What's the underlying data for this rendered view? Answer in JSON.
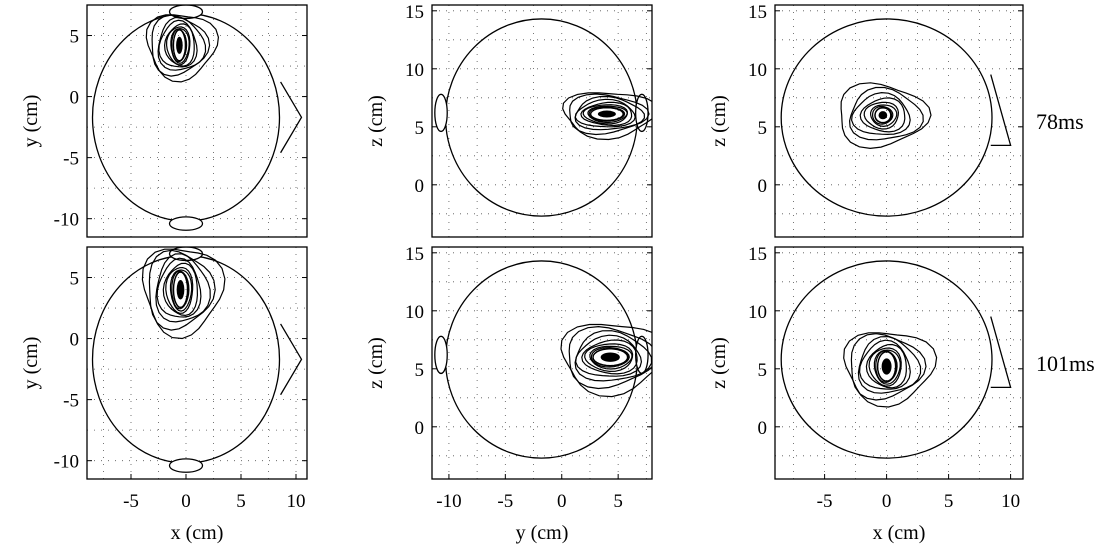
{
  "chart_data": [
    {
      "type": "contour",
      "view": "top",
      "row_label": "78ms",
      "xlabel": "",
      "ylabel": "y (cm)",
      "xlim": [
        -9,
        11
      ],
      "ylim": [
        -11.5,
        7.5
      ],
      "xticks": [],
      "yticks": [
        "5",
        "0",
        "-5",
        "-10"
      ],
      "grid": true,
      "head": {
        "shape": "circle",
        "center": [
          0,
          -1.7
        ],
        "radius": 8.5
      },
      "ears": [
        {
          "center": [
            0,
            6.95
          ],
          "rx": 1.5,
          "ry": 0.55
        },
        {
          "center": [
            0,
            -10.4
          ],
          "rx": 1.5,
          "ry": 0.55
        }
      ],
      "nose": {
        "base_top": [
          8.6,
          1.2
        ],
        "tip": [
          10.5,
          -1.7
        ],
        "base_bottom": [
          8.6,
          -4.6
        ]
      },
      "activity": {
        "peak": [
          -0.6,
          4.2
        ],
        "spread": [
          0.6,
          1.4
        ],
        "extent": [
          3.5,
          3.0
        ],
        "levels": 10
      }
    },
    {
      "type": "contour",
      "view": "back",
      "row_label": "78ms",
      "xlabel": "",
      "ylabel": "z (cm)",
      "xlim": [
        -11.5,
        8
      ],
      "ylim": [
        -4.5,
        15.5
      ],
      "xticks": [],
      "yticks": [
        "15",
        "10",
        "5",
        "0"
      ],
      "grid": true,
      "head": {
        "shape": "circle",
        "center": [
          -1.8,
          5.8
        ],
        "radius": 8.5
      },
      "ears": [
        {
          "center": [
            -10.7,
            6.2
          ],
          "rx": 0.55,
          "ry": 1.6
        },
        {
          "center": [
            7.1,
            6.2
          ],
          "rx": 0.55,
          "ry": 1.6
        }
      ],
      "activity": {
        "peak": [
          4.0,
          6.1
        ],
        "spread": [
          1.6,
          0.6
        ],
        "extent": [
          4.5,
          2.2
        ],
        "levels": 10
      }
    },
    {
      "type": "contour",
      "view": "side",
      "row_label": "78ms",
      "xlabel": "",
      "ylabel": "z (cm)",
      "xlim": [
        -9,
        11
      ],
      "ylim": [
        -4.5,
        15.5
      ],
      "xticks": [],
      "yticks": [
        "15",
        "10",
        "5",
        "0"
      ],
      "grid": true,
      "head": {
        "shape": "circle",
        "center": [
          0,
          5.8
        ],
        "radius": 8.5
      },
      "nose": {
        "base_top": [
          8.4,
          9.5
        ],
        "tip": [
          10.0,
          3.4
        ],
        "base_bottom": [
          8.4,
          3.4
        ]
      },
      "activity": {
        "peak": [
          -0.3,
          6.0
        ],
        "spread": [
          0.7,
          0.7
        ],
        "extent": [
          4.0,
          3.0
        ],
        "levels": 9
      }
    },
    {
      "type": "contour",
      "view": "top",
      "row_label": "101ms",
      "xlabel": "x (cm)",
      "ylabel": "y (cm)",
      "xlim": [
        -9,
        11
      ],
      "ylim": [
        -11.5,
        7.5
      ],
      "xticks": [
        "-5",
        "0",
        "5",
        "10"
      ],
      "yticks": [
        "5",
        "0",
        "-5",
        "-10"
      ],
      "grid": true,
      "head": {
        "shape": "circle",
        "center": [
          0,
          -1.7
        ],
        "radius": 8.5
      },
      "ears": [
        {
          "center": [
            0,
            6.95
          ],
          "rx": 1.5,
          "ry": 0.55
        },
        {
          "center": [
            0,
            -10.4
          ],
          "rx": 1.5,
          "ry": 0.55
        }
      ],
      "nose": {
        "base_top": [
          8.6,
          1.2
        ],
        "tip": [
          10.5,
          -1.7
        ],
        "base_bottom": [
          8.6,
          -4.6
        ]
      },
      "activity": {
        "peak": [
          -0.5,
          4.0
        ],
        "spread": [
          0.7,
          1.6
        ],
        "extent": [
          4.0,
          4.0
        ],
        "levels": 10
      }
    },
    {
      "type": "contour",
      "view": "back",
      "row_label": "101ms",
      "xlabel": "y (cm)",
      "ylabel": "z (cm)",
      "xlim": [
        -11.5,
        8
      ],
      "ylim": [
        -4.5,
        15.5
      ],
      "xticks": [
        "-10",
        "-5",
        "0",
        "5"
      ],
      "yticks": [
        "15",
        "10",
        "5",
        "0"
      ],
      "grid": true,
      "head": {
        "shape": "circle",
        "center": [
          -1.8,
          5.8
        ],
        "radius": 8.5
      },
      "ears": [
        {
          "center": [
            -10.7,
            6.2
          ],
          "rx": 0.55,
          "ry": 1.6
        },
        {
          "center": [
            7.1,
            6.2
          ],
          "rx": 0.55,
          "ry": 1.6
        }
      ],
      "activity": {
        "peak": [
          4.3,
          6.0
        ],
        "spread": [
          1.7,
          0.8
        ],
        "extent": [
          5.0,
          3.4
        ],
        "levels": 10
      }
    },
    {
      "type": "contour",
      "view": "side",
      "row_label": "101ms",
      "xlabel": "x (cm)",
      "ylabel": "z (cm)",
      "xlim": [
        -9,
        11
      ],
      "ylim": [
        -4.5,
        15.5
      ],
      "xticks": [
        "-5",
        "0",
        "5",
        "10"
      ],
      "yticks": [
        "15",
        "10",
        "5",
        "0"
      ],
      "grid": true,
      "head": {
        "shape": "circle",
        "center": [
          0,
          5.8
        ],
        "radius": 8.5
      },
      "nose": {
        "base_top": [
          8.4,
          9.5
        ],
        "tip": [
          10.0,
          3.4
        ],
        "base_bottom": [
          8.4,
          3.4
        ]
      },
      "activity": {
        "peak": [
          0.0,
          5.2
        ],
        "spread": [
          0.8,
          1.4
        ],
        "extent": [
          4.0,
          3.5
        ],
        "levels": 10
      }
    }
  ]
}
